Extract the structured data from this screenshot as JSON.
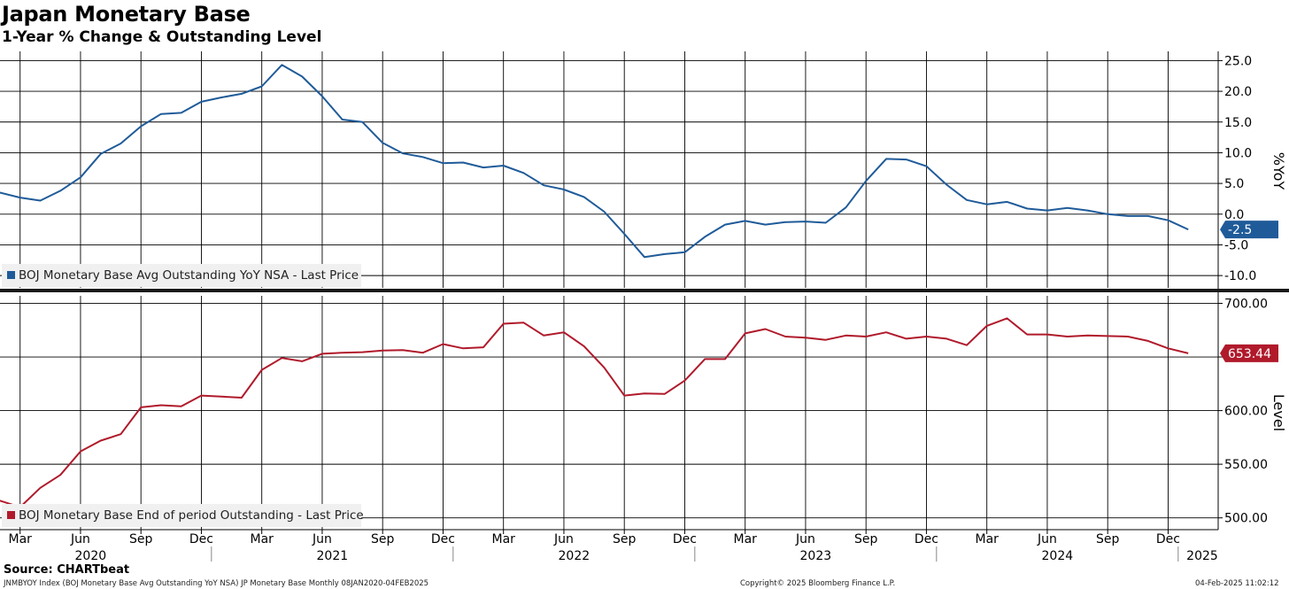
{
  "header": {
    "title": "Japan Monetary Base",
    "subtitle": "1-Year % Change & Outstanding Level"
  },
  "footer": {
    "source": "Source: CHARTbeat",
    "ticker": "JNMBYOY Index (BOJ Monetary Base Avg Outstanding YoY NSA) JP Monetary Base  Monthly 08JAN2020-04FEB2025",
    "copyright": "Copyright© 2025 Bloomberg Finance L.P.",
    "date": "04-Feb-2025 11:02:12"
  },
  "chart_data": [
    {
      "type": "line",
      "panel": "top",
      "ylabel": "%YoY",
      "ylim": [
        -12,
        26.5
      ],
      "yticks": [
        "25.0",
        "20.0",
        "15.0",
        "10.0",
        "5.0",
        "0.0",
        "-5.0",
        "-10.0"
      ],
      "grid": true,
      "legend_position": "bottom-left",
      "color": "#1f5b99",
      "series": [
        {
          "name": "BOJ Monetary Base Avg Outstanding YoY NSA - Last Price",
          "last_value_label": "-2.5",
          "values": [
            2.9,
            3.5,
            2.7,
            2.2,
            3.8,
            6.0,
            9.8,
            11.5,
            14.3,
            16.3,
            16.5,
            18.3,
            19.0,
            19.6,
            20.8,
            24.3,
            22.4,
            19.2,
            15.4,
            15.0,
            11.6,
            9.9,
            9.3,
            8.3,
            8.4,
            7.6,
            7.9,
            6.7,
            4.7,
            4.0,
            2.8,
            0.4,
            -3.2,
            -7.0,
            -6.5,
            -6.2,
            -3.7,
            -1.7,
            -1.1,
            -1.7,
            -1.3,
            -1.2,
            -1.4,
            1.1,
            5.4,
            9.0,
            8.9,
            7.8,
            4.8,
            2.3,
            1.6,
            2.0,
            0.9,
            0.6,
            1.0,
            0.6,
            0.0,
            -0.3,
            -0.3,
            -1.0,
            -2.5
          ]
        }
      ]
    },
    {
      "type": "line",
      "panel": "bottom",
      "ylabel": "Level",
      "ylim": [
        489,
        707
      ],
      "yticks": [
        "700.00",
        "650.00",
        "600.00",
        "550.00",
        "500.00"
      ],
      "grid": true,
      "legend_position": "bottom-left",
      "color": "#b01a2b",
      "series": [
        {
          "name": "BOJ Monetary Base End of period Outstanding - Last Price",
          "last_value_label": "653.44",
          "values": [
            517.0,
            516.0,
            510.0,
            528.0,
            540.0,
            562.0,
            572.0,
            578.0,
            603.0,
            605.0,
            604.0,
            614.0,
            613.0,
            612.0,
            638.0,
            649.0,
            646.0,
            653.0,
            654.0,
            654.5,
            656.0,
            656.5,
            654.0,
            662.0,
            658.0,
            659.0,
            681.0,
            682.0,
            670.0,
            673.0,
            660.0,
            640.0,
            614.0,
            616.0,
            615.5,
            628.0,
            648.0,
            648.0,
            672.0,
            676.0,
            669.0,
            668.0,
            666.0,
            670.0,
            669.0,
            673.0,
            667.0,
            669.0,
            667.0,
            661.0,
            679.0,
            686.0,
            671.0,
            671.0,
            669.0,
            670.0,
            669.5,
            669.0,
            665.0,
            658.0,
            653.44
          ]
        }
      ]
    }
  ],
  "x_axis": {
    "months": [
      "Mar",
      "Jun",
      "Sep",
      "Dec",
      "Mar",
      "Jun",
      "Sep",
      "Dec",
      "Mar",
      "Jun",
      "Sep",
      "Dec",
      "Mar",
      "Jun",
      "Sep",
      "Dec",
      "Mar",
      "Jun",
      "Sep",
      "Dec"
    ],
    "years": [
      "2020",
      "2021",
      "2022",
      "2023",
      "2024",
      "2025"
    ]
  }
}
